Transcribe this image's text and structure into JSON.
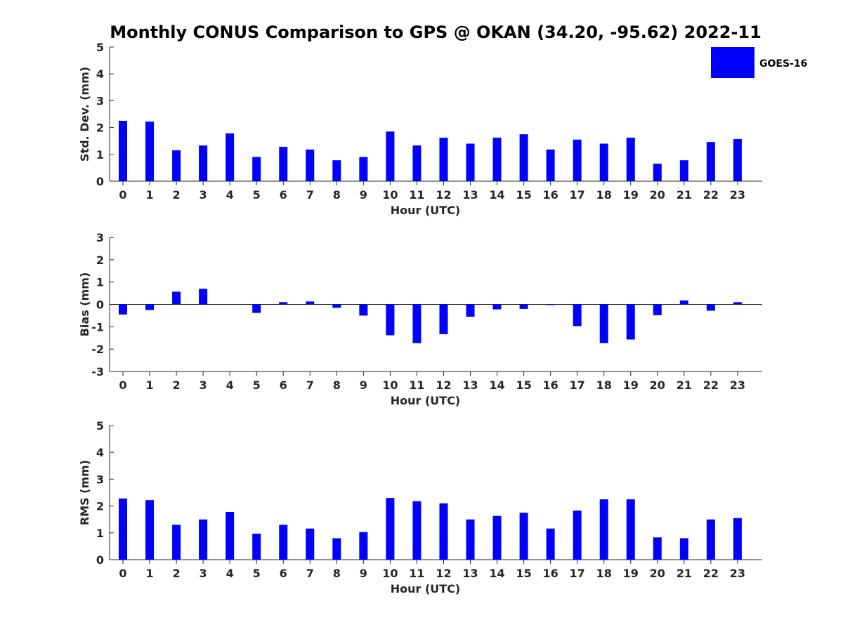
{
  "title": "Monthly CONUS Comparison to GPS @ OKAN (34.20, -95.62) 2022-11",
  "legend": {
    "label": "GOES-16"
  },
  "colors": {
    "bar": "#0000ff",
    "axis": "#262626"
  },
  "chart_data": [
    {
      "type": "bar",
      "categories": [
        "0",
        "1",
        "2",
        "3",
        "4",
        "5",
        "6",
        "7",
        "8",
        "9",
        "10",
        "11",
        "12",
        "13",
        "14",
        "15",
        "16",
        "17",
        "18",
        "19",
        "20",
        "21",
        "22",
        "23"
      ],
      "series": [
        {
          "name": "GOES-16",
          "values": [
            2.25,
            2.22,
            1.15,
            1.33,
            1.78,
            0.9,
            1.28,
            1.18,
            0.78,
            0.9,
            1.85,
            1.33,
            1.62,
            1.4,
            1.62,
            1.75,
            1.18,
            1.55,
            1.4,
            1.62,
            0.65,
            0.78,
            1.46,
            1.57
          ]
        }
      ],
      "xlabel": "Hour (UTC)",
      "ylabel": "Std. Dev. (mm)",
      "ylim": [
        0,
        5
      ],
      "yticks": [
        "0",
        "1",
        "2",
        "3",
        "4",
        "5"
      ]
    },
    {
      "type": "bar",
      "categories": [
        "0",
        "1",
        "2",
        "3",
        "4",
        "5",
        "6",
        "7",
        "8",
        "9",
        "10",
        "11",
        "12",
        "13",
        "14",
        "15",
        "16",
        "17",
        "18",
        "19",
        "20",
        "21",
        "22",
        "23"
      ],
      "series": [
        {
          "name": "GOES-16",
          "values": [
            -0.45,
            -0.25,
            0.57,
            0.7,
            0.0,
            -0.38,
            0.1,
            0.13,
            -0.15,
            -0.5,
            -1.38,
            -1.73,
            -1.33,
            -0.55,
            -0.22,
            -0.2,
            -0.03,
            -0.97,
            -1.73,
            -1.57,
            -0.48,
            0.18,
            -0.28,
            0.1
          ]
        }
      ],
      "xlabel": "Hour (UTC)",
      "ylabel": "Bias (mm)",
      "ylim": [
        -3,
        3
      ],
      "yticks": [
        "-3",
        "-2",
        "-1",
        "0",
        "1",
        "2",
        "3"
      ]
    },
    {
      "type": "bar",
      "categories": [
        "0",
        "1",
        "2",
        "3",
        "4",
        "5",
        "6",
        "7",
        "8",
        "9",
        "10",
        "11",
        "12",
        "13",
        "14",
        "15",
        "16",
        "17",
        "18",
        "19",
        "20",
        "21",
        "22",
        "23"
      ],
      "series": [
        {
          "name": "GOES-16",
          "values": [
            2.28,
            2.22,
            1.3,
            1.5,
            1.78,
            0.97,
            1.3,
            1.16,
            0.8,
            1.03,
            2.3,
            2.18,
            2.1,
            1.5,
            1.63,
            1.75,
            1.16,
            1.83,
            2.25,
            2.25,
            0.83,
            0.8,
            1.5,
            1.55
          ]
        }
      ],
      "xlabel": "Hour (UTC)",
      "ylabel": "RMS (mm)",
      "ylim": [
        0,
        5
      ],
      "yticks": [
        "0",
        "1",
        "2",
        "3",
        "4",
        "5"
      ]
    }
  ]
}
